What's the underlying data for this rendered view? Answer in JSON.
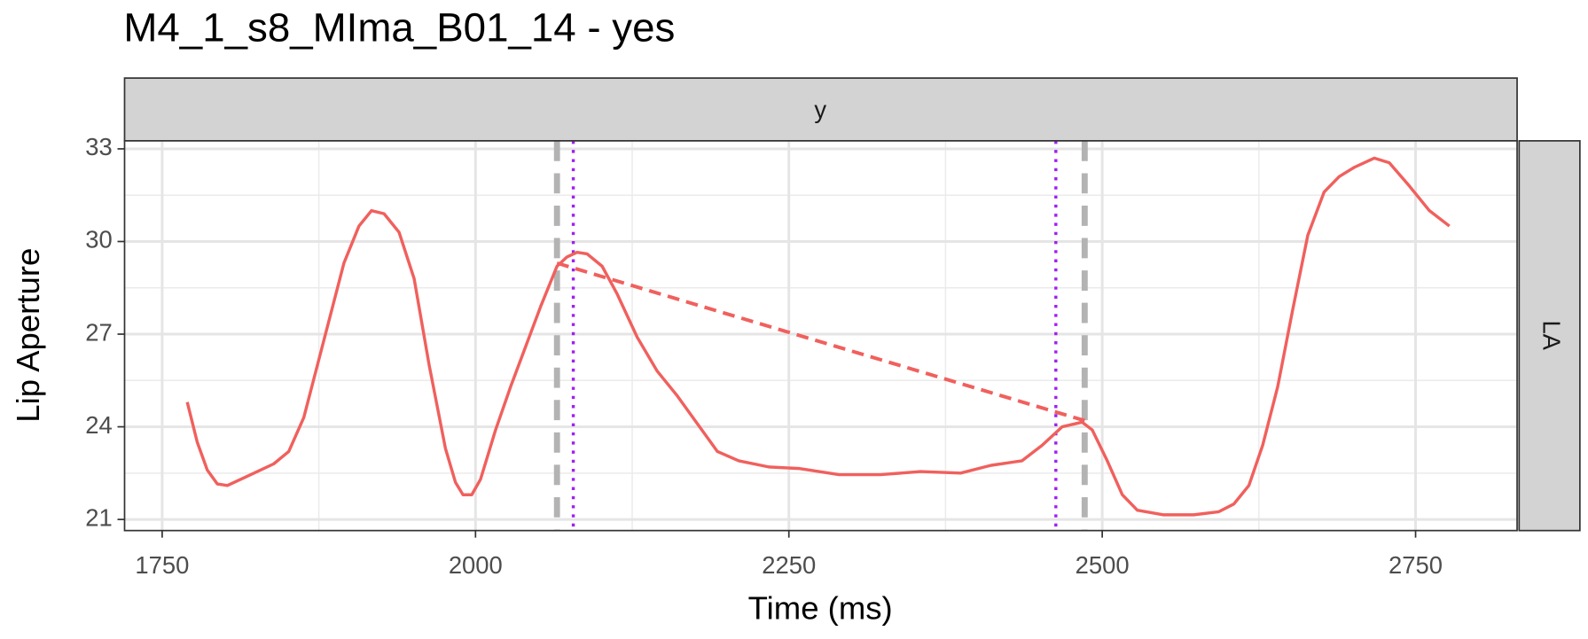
{
  "chart_data": {
    "type": "line",
    "title": "M4_1_s8_MIma_B01_14 - yes",
    "x_label": "Time (ms)",
    "y_label": "Lip Aperture",
    "facet_col_label": "y",
    "facet_row_label": "LA",
    "color": "#f0605d",
    "x": [
      1770,
      1778,
      1786,
      1794,
      1802,
      1818,
      1839,
      1851,
      1863,
      1879,
      1895,
      1907,
      1917,
      1927,
      1939,
      1951,
      1963,
      1976,
      1984,
      1990,
      1997,
      2004,
      2016,
      2028,
      2040,
      2052,
      2065,
      2073,
      2081,
      2089,
      2101,
      2113,
      2129,
      2145,
      2161,
      2177,
      2193,
      2210,
      2234,
      2258,
      2290,
      2323,
      2355,
      2387,
      2411,
      2436,
      2452,
      2468,
      2484,
      2492,
      2504,
      2516,
      2528,
      2549,
      2573,
      2593,
      2605,
      2617,
      2628,
      2640,
      2652,
      2664,
      2677,
      2689,
      2701,
      2717,
      2729,
      2745,
      2761,
      2777
    ],
    "values": [
      24.8,
      23.5,
      22.6,
      22.15,
      22.1,
      22.4,
      22.8,
      23.2,
      24.3,
      26.8,
      29.3,
      30.5,
      31.0,
      30.9,
      30.3,
      28.8,
      26.0,
      23.3,
      22.2,
      21.8,
      21.8,
      22.3,
      23.9,
      25.3,
      26.6,
      27.9,
      29.2,
      29.5,
      29.65,
      29.6,
      29.2,
      28.3,
      26.9,
      25.8,
      25.0,
      24.1,
      23.2,
      22.9,
      22.7,
      22.65,
      22.45,
      22.45,
      22.55,
      22.5,
      22.75,
      22.9,
      23.4,
      24.0,
      24.15,
      23.9,
      22.9,
      21.8,
      21.3,
      21.15,
      21.15,
      21.25,
      21.5,
      22.1,
      23.4,
      25.3,
      27.8,
      30.2,
      31.6,
      32.1,
      32.4,
      32.7,
      32.55,
      31.8,
      31.0,
      30.5
    ],
    "segment": {
      "x": [
        2065,
        2486
      ],
      "y": [
        29.3,
        24.2
      ],
      "color": "#f0605d"
    },
    "vlines": [
      {
        "x": 2065,
        "color": "#b3b3b3",
        "style": "dashed"
      },
      {
        "x": 2486,
        "color": "#b3b3b3",
        "style": "dashed"
      },
      {
        "x": 2078,
        "color": "#a020f0",
        "style": "dotted"
      },
      {
        "x": 2463,
        "color": "#a020f0",
        "style": "dotted"
      }
    ],
    "xlim": [
      1720,
      2831
    ],
    "ylim": [
      20.64,
      33.26
    ],
    "xticks": [
      1750,
      2000,
      2250,
      2500,
      2750
    ],
    "yticks": [
      21,
      24,
      27,
      30,
      33
    ],
    "grid": true
  }
}
